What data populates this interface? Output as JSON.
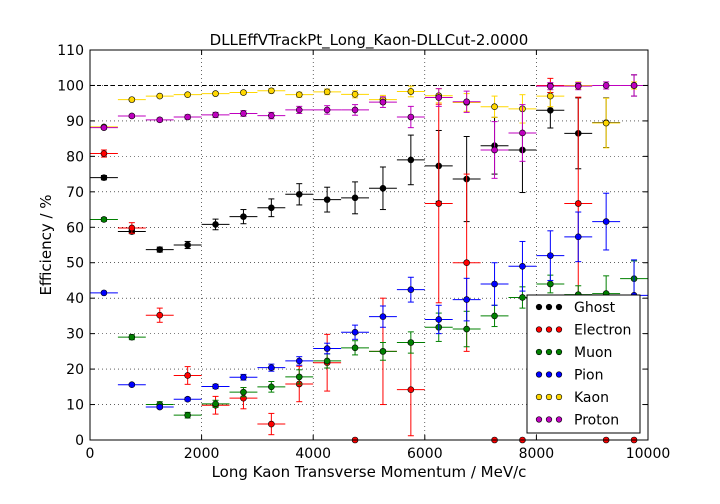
{
  "chart_data": {
    "type": "scatter",
    "title": "DLLEffVTrackPt_Long_Kaon-DLLCut-2.0000",
    "xlabel": "Long Kaon Transverse Momentum / MeV/c",
    "ylabel": "Efficiency / %",
    "xlim": [
      0,
      10000
    ],
    "ylim": [
      0,
      110
    ],
    "x_ticks": [
      "0",
      "2000",
      "4000",
      "6000",
      "8000",
      "10000"
    ],
    "y_ticks": [
      "0",
      "10",
      "20",
      "30",
      "40",
      "50",
      "60",
      "70",
      "80",
      "90",
      "100",
      "110"
    ],
    "grid": true,
    "reference_line": 100,
    "legend_position": "lower-right",
    "bin_half_width": 250,
    "x": [
      250,
      750,
      1250,
      1750,
      2250,
      2750,
      3250,
      3750,
      4250,
      4750,
      5250,
      5750,
      6250,
      6750,
      7250,
      7750,
      8250,
      8750,
      9250,
      9750
    ],
    "series": [
      {
        "name": "Ghost",
        "color": "#000000",
        "values": [
          74,
          58.8,
          53.7,
          55,
          60.8,
          63,
          65.5,
          69.3,
          67.8,
          68.3,
          71,
          79,
          77.3,
          73.6,
          83,
          81.8,
          93,
          86.5,
          89.5,
          100
        ],
        "errors": [
          0.6,
          0.6,
          0.7,
          1,
          1.5,
          2,
          2.5,
          3,
          3.5,
          4.5,
          6,
          7,
          10,
          12,
          8,
          12,
          5,
          10,
          7,
          3
        ]
      },
      {
        "name": "Electron",
        "color": "#ff0000",
        "values": [
          80.8,
          59.8,
          35.2,
          18.2,
          9.8,
          11.8,
          4.5,
          15.8,
          21.8,
          0,
          25,
          14.2,
          66.7,
          50,
          0,
          0,
          100,
          66.7,
          0,
          0
        ],
        "errors": [
          1,
          1.5,
          2,
          2.5,
          2.5,
          3,
          3,
          5,
          8,
          0,
          15,
          13,
          28,
          25,
          0,
          0,
          2,
          30,
          0,
          0
        ]
      },
      {
        "name": "Muon",
        "color": "#008000",
        "values": [
          62.2,
          29,
          10,
          7,
          10.2,
          13.5,
          15,
          17.8,
          22.3,
          26,
          25,
          27.5,
          31.8,
          31.3,
          35,
          40.2,
          44,
          41,
          41.3,
          45.5
        ],
        "errors": [
          0.5,
          0.7,
          0.8,
          0.8,
          1,
          1.3,
          1.5,
          2,
          2,
          2,
          2.5,
          3,
          4,
          5,
          3,
          3,
          2.5,
          2.5,
          5,
          5
        ]
      },
      {
        "name": "Pion",
        "color": "#0000ff",
        "values": [
          41.5,
          15.6,
          9.3,
          11.5,
          15.1,
          17.7,
          20.4,
          22.3,
          25.8,
          30.4,
          34.8,
          42.4,
          34,
          39.6,
          44,
          49,
          52,
          57.3,
          61.6,
          40.8
        ],
        "errors": [
          0.3,
          0.3,
          0.4,
          0.5,
          0.6,
          0.8,
          1,
          1.2,
          1.5,
          2,
          3,
          3.5,
          4,
          6,
          6,
          7,
          7,
          7,
          8,
          10
        ]
      },
      {
        "name": "Kaon",
        "color": "#ffd700",
        "values": [
          88.3,
          96,
          97,
          97.4,
          97.7,
          98,
          98.5,
          97.4,
          98.2,
          97.5,
          96,
          98.3,
          97.1,
          95.2,
          94,
          93.4,
          97,
          100,
          89.4,
          100
        ],
        "errors": [
          0.3,
          0.3,
          0.3,
          0.4,
          0.4,
          0.5,
          0.6,
          0.7,
          0.8,
          1,
          1.2,
          1.5,
          2,
          2.5,
          3,
          4,
          3,
          1,
          7,
          1
        ]
      },
      {
        "name": "Proton",
        "color": "#bf00bf",
        "values": [
          88.1,
          91.4,
          90.3,
          91.1,
          91.7,
          92.1,
          91.5,
          93.1,
          93.1,
          93.1,
          95.3,
          91.1,
          96.6,
          95.4,
          81.8,
          86.6,
          99.8,
          99.8,
          100,
          100
        ],
        "errors": [
          0.4,
          0.4,
          0.5,
          0.6,
          0.7,
          0.8,
          0.9,
          1,
          1.2,
          1.5,
          1.5,
          3,
          2.5,
          3,
          8,
          8,
          1,
          1,
          1,
          3
        ]
      }
    ]
  }
}
